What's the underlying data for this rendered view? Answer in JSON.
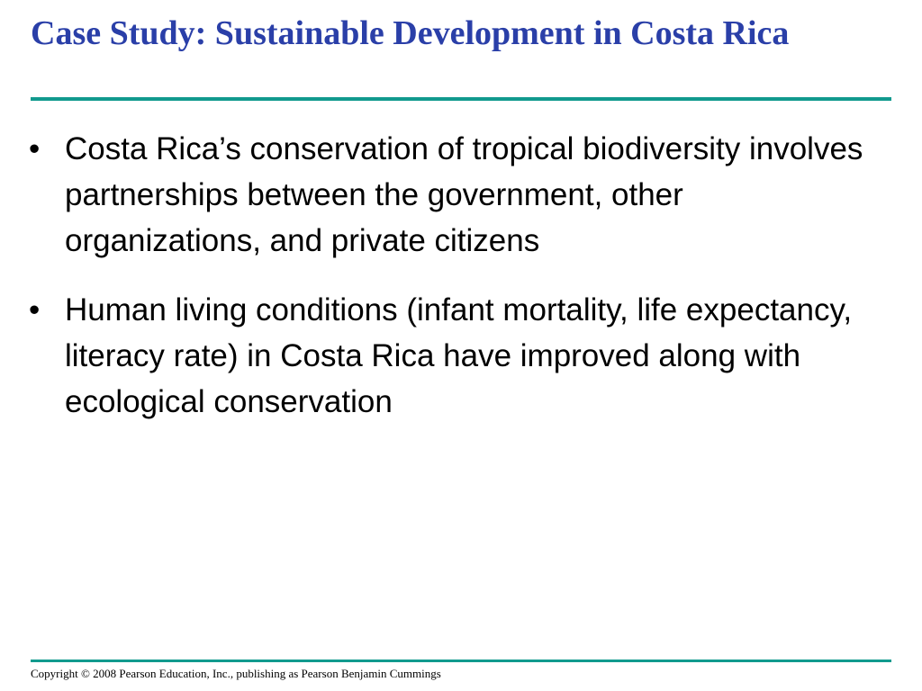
{
  "slide": {
    "title": "Case Study: Sustainable Development in Costa Rica",
    "bullet_marker": "•",
    "bullets": [
      "Costa Rica’s conservation of tropical biodiversity involves partnerships between the government, other organizations, and private citizens",
      "Human living conditions (infant mortality, life expectancy, literacy rate) in Costa Rica have improved along with ecological conservation"
    ],
    "footer": "Copyright © 2008 Pearson Education, Inc., publishing as Pearson Benjamin Cummings"
  },
  "colors": {
    "title": "#2a3fa8",
    "rule": "#119a8e",
    "body_text": "#000000",
    "background": "#ffffff"
  }
}
